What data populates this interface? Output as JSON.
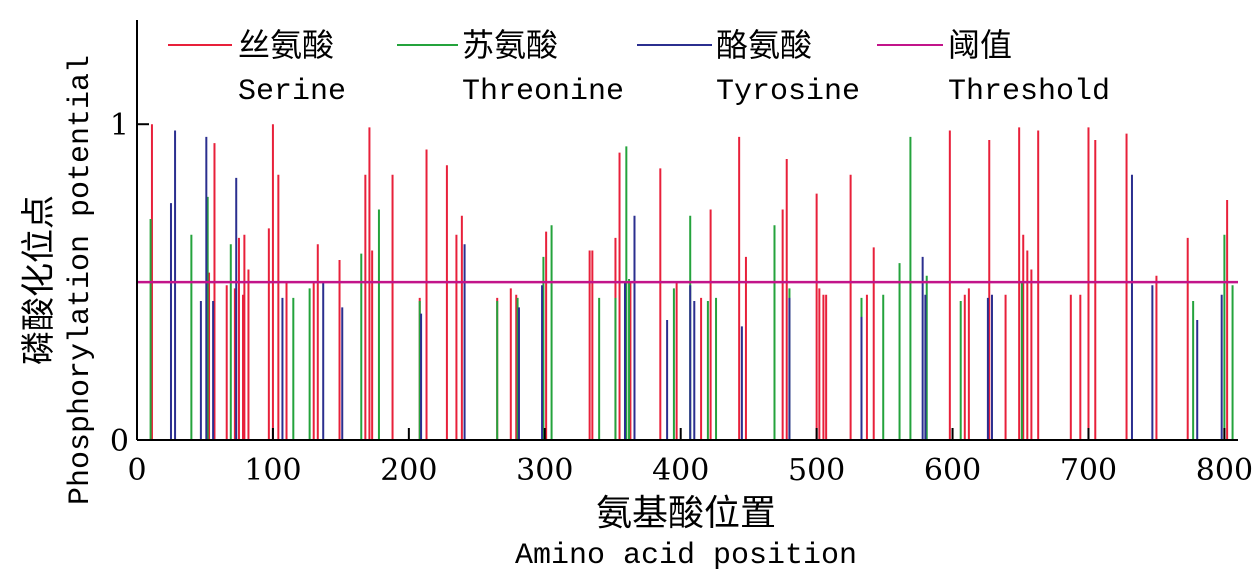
{
  "chart_data": {
    "type": "bar",
    "ylabel_cn": "磷酸化位点",
    "ylabel_en": "Phosphorylation potential",
    "xlabel_cn": "氨基酸位置",
    "xlabel_en": "Amino acid position",
    "xlim": [
      0,
      810
    ],
    "ylim": [
      0,
      1.33
    ],
    "x_ticks": [
      0,
      100,
      200,
      300,
      400,
      500,
      600,
      700,
      800
    ],
    "x_tick_labels": [
      "0",
      "100",
      "200",
      "300",
      "400",
      "500",
      "600",
      "700",
      "800"
    ],
    "y_ticks": [
      0,
      1
    ],
    "y_tick_labels": [
      "0",
      "1"
    ],
    "threshold": 0.5,
    "legend_position": "top",
    "series": [
      {
        "name_cn": "丝氨酸",
        "name_en": "Serine",
        "color": "#e8203a",
        "points": [
          [
            11,
            1.0
          ],
          [
            53,
            0.53
          ],
          [
            57,
            0.94
          ],
          [
            66,
            0.49
          ],
          [
            72,
            0.48
          ],
          [
            75,
            0.64
          ],
          [
            78,
            0.46
          ],
          [
            79,
            0.65
          ],
          [
            82,
            0.54
          ],
          [
            97,
            0.67
          ],
          [
            100,
            1.0
          ],
          [
            104,
            0.84
          ],
          [
            110,
            0.5
          ],
          [
            130,
            0.5
          ],
          [
            133,
            0.62
          ],
          [
            149,
            0.57
          ],
          [
            168,
            0.84
          ],
          [
            171,
            0.99
          ],
          [
            173,
            0.6
          ],
          [
            188,
            0.84
          ],
          [
            208,
            0.45
          ],
          [
            213,
            0.92
          ],
          [
            228,
            0.87
          ],
          [
            235,
            0.65
          ],
          [
            239,
            0.71
          ],
          [
            265,
            0.45
          ],
          [
            275,
            0.48
          ],
          [
            279,
            0.46
          ],
          [
            301,
            0.66
          ],
          [
            333,
            0.6
          ],
          [
            335,
            0.6
          ],
          [
            352,
            0.64
          ],
          [
            355,
            0.91
          ],
          [
            363,
            0.5
          ],
          [
            385,
            0.86
          ],
          [
            397,
            0.5
          ],
          [
            415,
            0.45
          ],
          [
            422,
            0.73
          ],
          [
            443,
            0.96
          ],
          [
            448,
            0.58
          ],
          [
            475,
            0.73
          ],
          [
            478,
            0.89
          ],
          [
            500,
            0.78
          ],
          [
            502,
            0.48
          ],
          [
            505,
            0.46
          ],
          [
            507,
            0.46
          ],
          [
            525,
            0.84
          ],
          [
            537,
            0.46
          ],
          [
            542,
            0.61
          ],
          [
            598,
            0.98
          ],
          [
            609,
            0.46
          ],
          [
            612,
            0.48
          ],
          [
            627,
            0.95
          ],
          [
            639,
            0.46
          ],
          [
            649,
            0.99
          ],
          [
            652,
            0.65
          ],
          [
            655,
            0.6
          ],
          [
            658,
            0.54
          ],
          [
            663,
            0.98
          ],
          [
            687,
            0.46
          ],
          [
            694,
            0.46
          ],
          [
            700,
            0.99
          ],
          [
            705,
            0.95
          ],
          [
            728,
            0.97
          ],
          [
            750,
            0.52
          ],
          [
            773,
            0.64
          ],
          [
            802,
            0.76
          ]
        ]
      },
      {
        "name_cn": "苏氨酸",
        "name_en": "Threonine",
        "color": "#24a33c",
        "points": [
          [
            10,
            0.7
          ],
          [
            40,
            0.65
          ],
          [
            52,
            0.77
          ],
          [
            69,
            0.62
          ],
          [
            115,
            0.45
          ],
          [
            127,
            0.48
          ],
          [
            165,
            0.59
          ],
          [
            178,
            0.73
          ],
          [
            208,
            0.44
          ],
          [
            265,
            0.44
          ],
          [
            280,
            0.45
          ],
          [
            299,
            0.58
          ],
          [
            305,
            0.68
          ],
          [
            340,
            0.45
          ],
          [
            352,
            0.45
          ],
          [
            360,
            0.93
          ],
          [
            362,
            0.51
          ],
          [
            395,
            0.48
          ],
          [
            407,
            0.71
          ],
          [
            420,
            0.44
          ],
          [
            426,
            0.45
          ],
          [
            469,
            0.68
          ],
          [
            480,
            0.48
          ],
          [
            533,
            0.45
          ],
          [
            549,
            0.46
          ],
          [
            561,
            0.56
          ],
          [
            569,
            0.96
          ],
          [
            581,
            0.52
          ],
          [
            606,
            0.44
          ],
          [
            651,
            0.5
          ],
          [
            777,
            0.44
          ],
          [
            800,
            0.65
          ],
          [
            806,
            0.49
          ]
        ]
      },
      {
        "name_cn": "酪氨酸",
        "name_en": "Tyrosine",
        "color": "#2b2f8f",
        "points": [
          [
            25,
            0.75
          ],
          [
            28,
            0.98
          ],
          [
            47,
            0.44
          ],
          [
            51,
            0.96
          ],
          [
            56,
            0.44
          ],
          [
            73,
            0.83
          ],
          [
            107,
            0.45
          ],
          [
            137,
            0.5
          ],
          [
            151,
            0.42
          ],
          [
            209,
            0.4
          ],
          [
            241,
            0.62
          ],
          [
            281,
            0.42
          ],
          [
            298,
            0.49
          ],
          [
            359,
            0.5
          ],
          [
            366,
            0.71
          ],
          [
            390,
            0.38
          ],
          [
            407,
            0.49
          ],
          [
            410,
            0.44
          ],
          [
            445,
            0.36
          ],
          [
            480,
            0.45
          ],
          [
            533,
            0.39
          ],
          [
            578,
            0.58
          ],
          [
            580,
            0.46
          ],
          [
            626,
            0.45
          ],
          [
            629,
            0.46
          ],
          [
            732,
            0.84
          ],
          [
            747,
            0.49
          ],
          [
            780,
            0.38
          ],
          [
            798,
            0.46
          ]
        ]
      }
    ],
    "threshold_series": {
      "name_cn": "阈值",
      "name_en": "Threshold",
      "color": "#c2148a"
    }
  }
}
